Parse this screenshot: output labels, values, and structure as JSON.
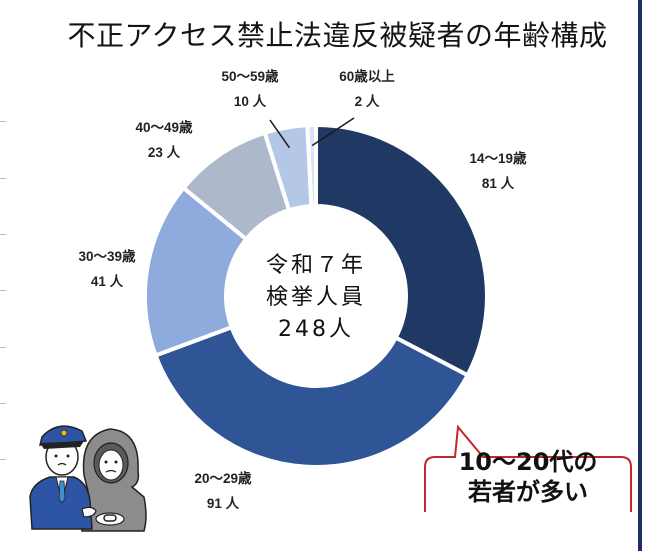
{
  "page": {
    "title": "不正アクセス禁止法違反被疑者の年齢構成"
  },
  "center_label": {
    "line1": "令和７年",
    "line2": "検挙人員",
    "line3": "248人"
  },
  "callout": {
    "line1": "10～20代の",
    "line2": "若者が多い"
  },
  "colors": {
    "accent_border": "#c0282d",
    "frame_rule": "#1c2f5e"
  },
  "chart_data": {
    "type": "pie",
    "variant": "donut",
    "title": "不正アクセス禁止法違反被疑者の年齢構成",
    "total": 248,
    "total_label": "令和７年 検挙人員 248人",
    "unit": "人",
    "categories": [
      "14～19歳",
      "20～29歳",
      "30～39歳",
      "40～49歳",
      "50～59歳",
      "60歳以上"
    ],
    "values": [
      81,
      91,
      41,
      23,
      10,
      2
    ],
    "colors": [
      "#1f3864",
      "#2f5597",
      "#8faadc",
      "#adb9ca",
      "#b4c7e7",
      "#dae3f3"
    ],
    "start_angle": "12 o'clock, clockwise",
    "legend": "none (direct labels)",
    "annotation": "10～20代の若者が多い"
  },
  "labels": [
    {
      "age": "14～19歳",
      "count": "81 人"
    },
    {
      "age": "20～29歳",
      "count": "91 人"
    },
    {
      "age": "30～39歳",
      "count": "41 人"
    },
    {
      "age": "40～49歳",
      "count": "23 人"
    },
    {
      "age": "50～59歳",
      "count": "10 人"
    },
    {
      "age": "60歳以上",
      "count": "2 人"
    }
  ]
}
